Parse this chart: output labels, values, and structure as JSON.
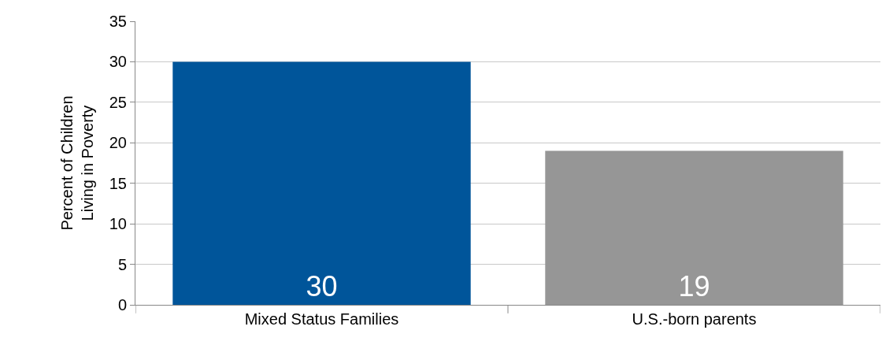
{
  "chart_data": {
    "type": "bar",
    "ylabel": "Percent of Children\nLiving in Poverty",
    "categories": [
      "Mixed Status Families",
      "U.S.-born parents"
    ],
    "values": [
      30,
      19
    ],
    "colors": [
      "#00559a",
      "#969696"
    ],
    "ylim": [
      0,
      35
    ],
    "yticks": [
      0,
      5,
      10,
      15,
      20,
      25,
      30,
      35
    ],
    "grid": "y",
    "data_labels": true
  }
}
